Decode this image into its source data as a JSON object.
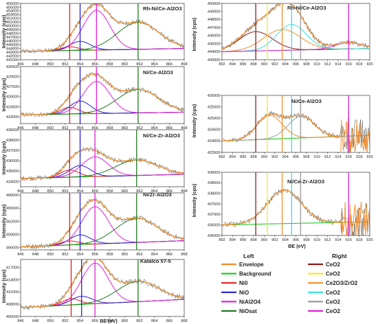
{
  "chart_data": [
    {
      "panel": "left-1",
      "type": "line",
      "title": "Rh-Ni/Ce-Al2O3",
      "xlabel": "",
      "ylabel": "Intensity (cps)",
      "xlim": [
        846,
        868
      ],
      "x_reversed": false,
      "ylim": [
        441000,
        456000
      ],
      "yticks": [
        441000,
        442000,
        443000,
        444000,
        445000,
        446000,
        447000,
        448000,
        449000,
        450000,
        451000,
        452000,
        453000,
        454000,
        455000,
        456000
      ],
      "xticks": [
        846,
        848,
        850,
        852,
        854,
        856,
        858,
        860,
        862,
        864,
        866,
        868
      ],
      "peaks": [
        {
          "name": "Ni0",
          "center": 852.6,
          "height": 1000,
          "width": 1.2
        },
        {
          "name": "NiO",
          "center": 854.0,
          "height": 2400,
          "width": 1.4
        },
        {
          "name": "NiAl2O4",
          "center": 856.2,
          "height": 10600,
          "width": 1.8
        },
        {
          "name": "NiOsat",
          "center": 861.8,
          "height": 7200,
          "width": 2.8
        }
      ],
      "background": [
        443200,
        444000
      ],
      "vlines": [
        852.6,
        854.0,
        856.2,
        861.8
      ]
    },
    {
      "panel": "left-2",
      "type": "line",
      "title": "Ni/Ce-Al2O3",
      "xlabel": "",
      "ylabel": "Intensity (cps)",
      "xlim": [
        846,
        868
      ],
      "x_reversed": false,
      "ylim": [
        422000,
        430500
      ],
      "yticks": [
        423000,
        424500,
        426000,
        427500,
        429000,
        430500
      ],
      "xticks": [
        846,
        848,
        850,
        852,
        854,
        856,
        858,
        860,
        862,
        864,
        866,
        868
      ],
      "peaks": [
        {
          "name": "Ni0",
          "center": 852.6,
          "height": 1000,
          "width": 1.2
        },
        {
          "name": "NiO",
          "center": 854.0,
          "height": 1900,
          "width": 1.4
        },
        {
          "name": "NiAl2O4",
          "center": 856.2,
          "height": 4800,
          "width": 1.8
        },
        {
          "name": "NiOsat",
          "center": 861.8,
          "height": 3500,
          "width": 2.8
        }
      ],
      "background": [
        423300,
        423700
      ],
      "vlines": [
        852.6,
        854.0,
        856.2,
        861.8
      ]
    },
    {
      "panel": "left-3",
      "type": "line",
      "title": "Ni/Ce-Zr-Al2O3",
      "xlabel": "",
      "ylabel": "Intensity (cps)",
      "xlim": [
        846,
        868
      ],
      "x_reversed": false,
      "ylim": [
        433500,
        439000
      ],
      "yticks": [
        434000,
        435000,
        436000,
        437000,
        438000,
        439000
      ],
      "xticks": [
        846,
        848,
        850,
        852,
        854,
        856,
        858,
        860,
        862,
        864,
        866,
        868
      ],
      "peaks": [
        {
          "name": "Ni0",
          "center": 852.6,
          "height": 700,
          "width": 1.2
        },
        {
          "name": "NiO",
          "center": 854.0,
          "height": 1100,
          "width": 1.4
        },
        {
          "name": "NiAl2O4",
          "center": 856.0,
          "height": 1900,
          "width": 1.8
        },
        {
          "name": "NiOsat",
          "center": 861.6,
          "height": 1500,
          "width": 2.8
        }
      ],
      "background": [
        434300,
        434700
      ],
      "vlines": [
        852.6,
        854.0,
        856.0,
        861.6
      ]
    },
    {
      "panel": "left-4",
      "type": "line",
      "title": "Ni/Zr-Al2O3",
      "xlabel": "",
      "ylabel": "Intensity (cps)",
      "xlim": [
        846,
        868
      ],
      "x_reversed": false,
      "ylim": [
        455500,
        468500
      ],
      "yticks": [
        456000,
        459000,
        462000,
        465000,
        468000
      ],
      "xticks": [
        846,
        848,
        850,
        852,
        854,
        856,
        858,
        860,
        862,
        864,
        866,
        868
      ],
      "peaks": [
        {
          "name": "Ni0",
          "center": 852.6,
          "height": 900,
          "width": 1.2
        },
        {
          "name": "NiO",
          "center": 854.0,
          "height": 2200,
          "width": 1.4
        },
        {
          "name": "NiAl2O4",
          "center": 856.0,
          "height": 8500,
          "width": 1.8
        },
        {
          "name": "NiOsat",
          "center": 861.6,
          "height": 5500,
          "width": 2.8
        }
      ],
      "background": [
        456200,
        457600
      ],
      "vlines": [
        852.6,
        854.0,
        856.0,
        861.6
      ]
    },
    {
      "panel": "left-5",
      "type": "line",
      "title": "Katalco 57-5",
      "xlabel": "BE (eV)",
      "ylabel": "Intensity (cps)",
      "xlim": [
        846,
        868
      ],
      "x_reversed": false,
      "ylim": [
        405000,
        419000
      ],
      "yticks": [
        405000,
        408000,
        411000,
        414000,
        417000
      ],
      "xticks": [
        846,
        848,
        850,
        852,
        854,
        856,
        858,
        860,
        862,
        864,
        866,
        868
      ],
      "peaks": [
        {
          "name": "Ni0",
          "center": 852.8,
          "height": 1500,
          "width": 1.2
        },
        {
          "name": "NiO",
          "center": 854.2,
          "height": 2000,
          "width": 1.4
        },
        {
          "name": "NiAl2O4",
          "center": 856.0,
          "height": 10000,
          "width": 1.8
        },
        {
          "name": "NiOsat",
          "center": 861.8,
          "height": 5000,
          "width": 2.8
        }
      ],
      "background": [
        407200,
        409200
      ],
      "vlines": [
        852.8,
        854.2,
        856.0,
        861.8
      ]
    },
    {
      "panel": "right-1",
      "type": "line",
      "title": "Rh-Ni/Ce-Al2O3",
      "xlabel": "",
      "ylabel": "Intensity (cps)",
      "xlim": [
        892,
        920
      ],
      "x_reversed": false,
      "ylim": [
        443000,
        450000
      ],
      "yticks": [
        443000,
        444000,
        445000,
        446000,
        447000,
        448000,
        449000,
        450000
      ],
      "xticks": [
        892,
        894,
        896,
        898,
        900,
        902,
        904,
        906,
        908,
        910,
        912,
        914,
        916,
        918,
        920
      ],
      "peaks": [
        {
          "name": "CeO2 (a)",
          "center": 898.4,
          "height": 2400,
          "width": 3.2
        },
        {
          "name": "Ce2O3/ZrO2",
          "center": 903.4,
          "height": 2600,
          "width": 3.5
        },
        {
          "name": "CeO2 (c)",
          "center": 905.2,
          "height": 3200,
          "width": 2.8
        },
        {
          "name": "CeO2 (f)",
          "center": 916.0,
          "height": 800,
          "width": 2.5
        }
      ],
      "background": [
        444000,
        444400
      ],
      "vlines": [
        898.4,
        900.6,
        903.4,
        905.2,
        906.9,
        916.0
      ]
    },
    {
      "panel": "right-2",
      "type": "line",
      "title": "Ni/Ce-Al2O3",
      "xlabel": "",
      "ylabel": "Intensity (cps)",
      "xlim": [
        892,
        920
      ],
      "x_reversed": false,
      "ylim": [
        423500,
        426000
      ],
      "yticks": [
        423500,
        424000,
        424500,
        425000,
        425500,
        426000
      ],
      "xticks": [
        892,
        894,
        896,
        898,
        900,
        902,
        904,
        906,
        908,
        910,
        912,
        914,
        916,
        918,
        920
      ],
      "peaks": [
        {
          "name": "Ce2O3/ZrO2",
          "center": 901.0,
          "height": 1050,
          "width": 2.4
        },
        {
          "name": "CeO2 (e)",
          "center": 907.0,
          "height": 950,
          "width": 2.5
        }
      ],
      "background": [
        424000,
        424250
      ],
      "vlines": [
        898.4,
        900.6,
        903.4,
        905.2,
        906.9,
        916.0
      ]
    },
    {
      "panel": "right-3",
      "type": "line",
      "title": "Ni/Ce-Zr-Al2O3",
      "xlabel": "BE (eV)",
      "ylabel": "Intensity (cps)",
      "xlim": [
        892,
        920
      ],
      "x_reversed": false,
      "ylim": [
        436000,
        439000
      ],
      "yticks": [
        436000,
        436500,
        437000,
        437500,
        438000,
        438500,
        439000
      ],
      "xticks": [
        892,
        894,
        896,
        898,
        900,
        902,
        904,
        906,
        908,
        910,
        912,
        914,
        916,
        918,
        920
      ],
      "peaks": [
        {
          "name": "Ce2O3/ZrO2",
          "center": 903.8,
          "height": 1600,
          "width": 3.2
        }
      ],
      "background": [
        436500,
        436650
      ],
      "vlines": [
        898.4,
        900.6,
        903.4,
        905.2,
        906.9,
        916.0
      ]
    }
  ],
  "labels": {
    "p1_title": "Rh-Ni/Ce-Al2O3",
    "p2_title": "Ni/Ce-Al2O3",
    "p3_title": "Ni/Ce-Zr-Al2O3",
    "p4_title": "Ni/Zr-Al2O3",
    "p5_title": "Katalco 57-5",
    "r1_title": "Rh-Ni/Ce-Al2O3",
    "r2_title": "Ni/Ce-Al2O3",
    "r3_title": "Ni/Ce-Zr-Al2O3",
    "ylabel": "Intensity (cps)",
    "xlabel": "BE (eV)"
  },
  "legend": {
    "left_title": "Left",
    "right_title": "Right",
    "left": [
      {
        "label": "Envelope",
        "color": "#f28c28"
      },
      {
        "label": "Background",
        "color": "#22cc22"
      },
      {
        "label": "Ni0",
        "color": "#e8191c"
      },
      {
        "label": "NiO",
        "color": "#1f1fd8"
      },
      {
        "label": "NiAl2O4",
        "color": "#e020d8"
      },
      {
        "label": "NiOsat",
        "color": "#1f7a1f"
      }
    ],
    "right": [
      {
        "label": "CeO2",
        "color": "#8b1a1a"
      },
      {
        "label": "CeO2",
        "color": "#f2e82a"
      },
      {
        "label": "Ce2O3/ZrO2",
        "color": "#f28c28"
      },
      {
        "label": "CeO2",
        "color": "#33e0e8"
      },
      {
        "label": "CeO2",
        "color": "#999999"
      },
      {
        "label": "CeO2",
        "color": "#e020d8"
      }
    ]
  },
  "colors": {
    "raw": "#333333",
    "envelope": "#f28c28",
    "background": "#22cc22",
    "ni0": "#e8191c",
    "nio": "#1f1fd8",
    "nial2o4": "#e020d8",
    "niosat": "#1f7a1f",
    "r_ceo2_a": "#8b1a1a",
    "r_ceo2_b": "#f2e82a",
    "r_ce2o3": "#f28c28",
    "r_ceo2_c": "#33e0e8",
    "r_ceo2_e": "#999999",
    "r_ceo2_f": "#e020d8"
  }
}
